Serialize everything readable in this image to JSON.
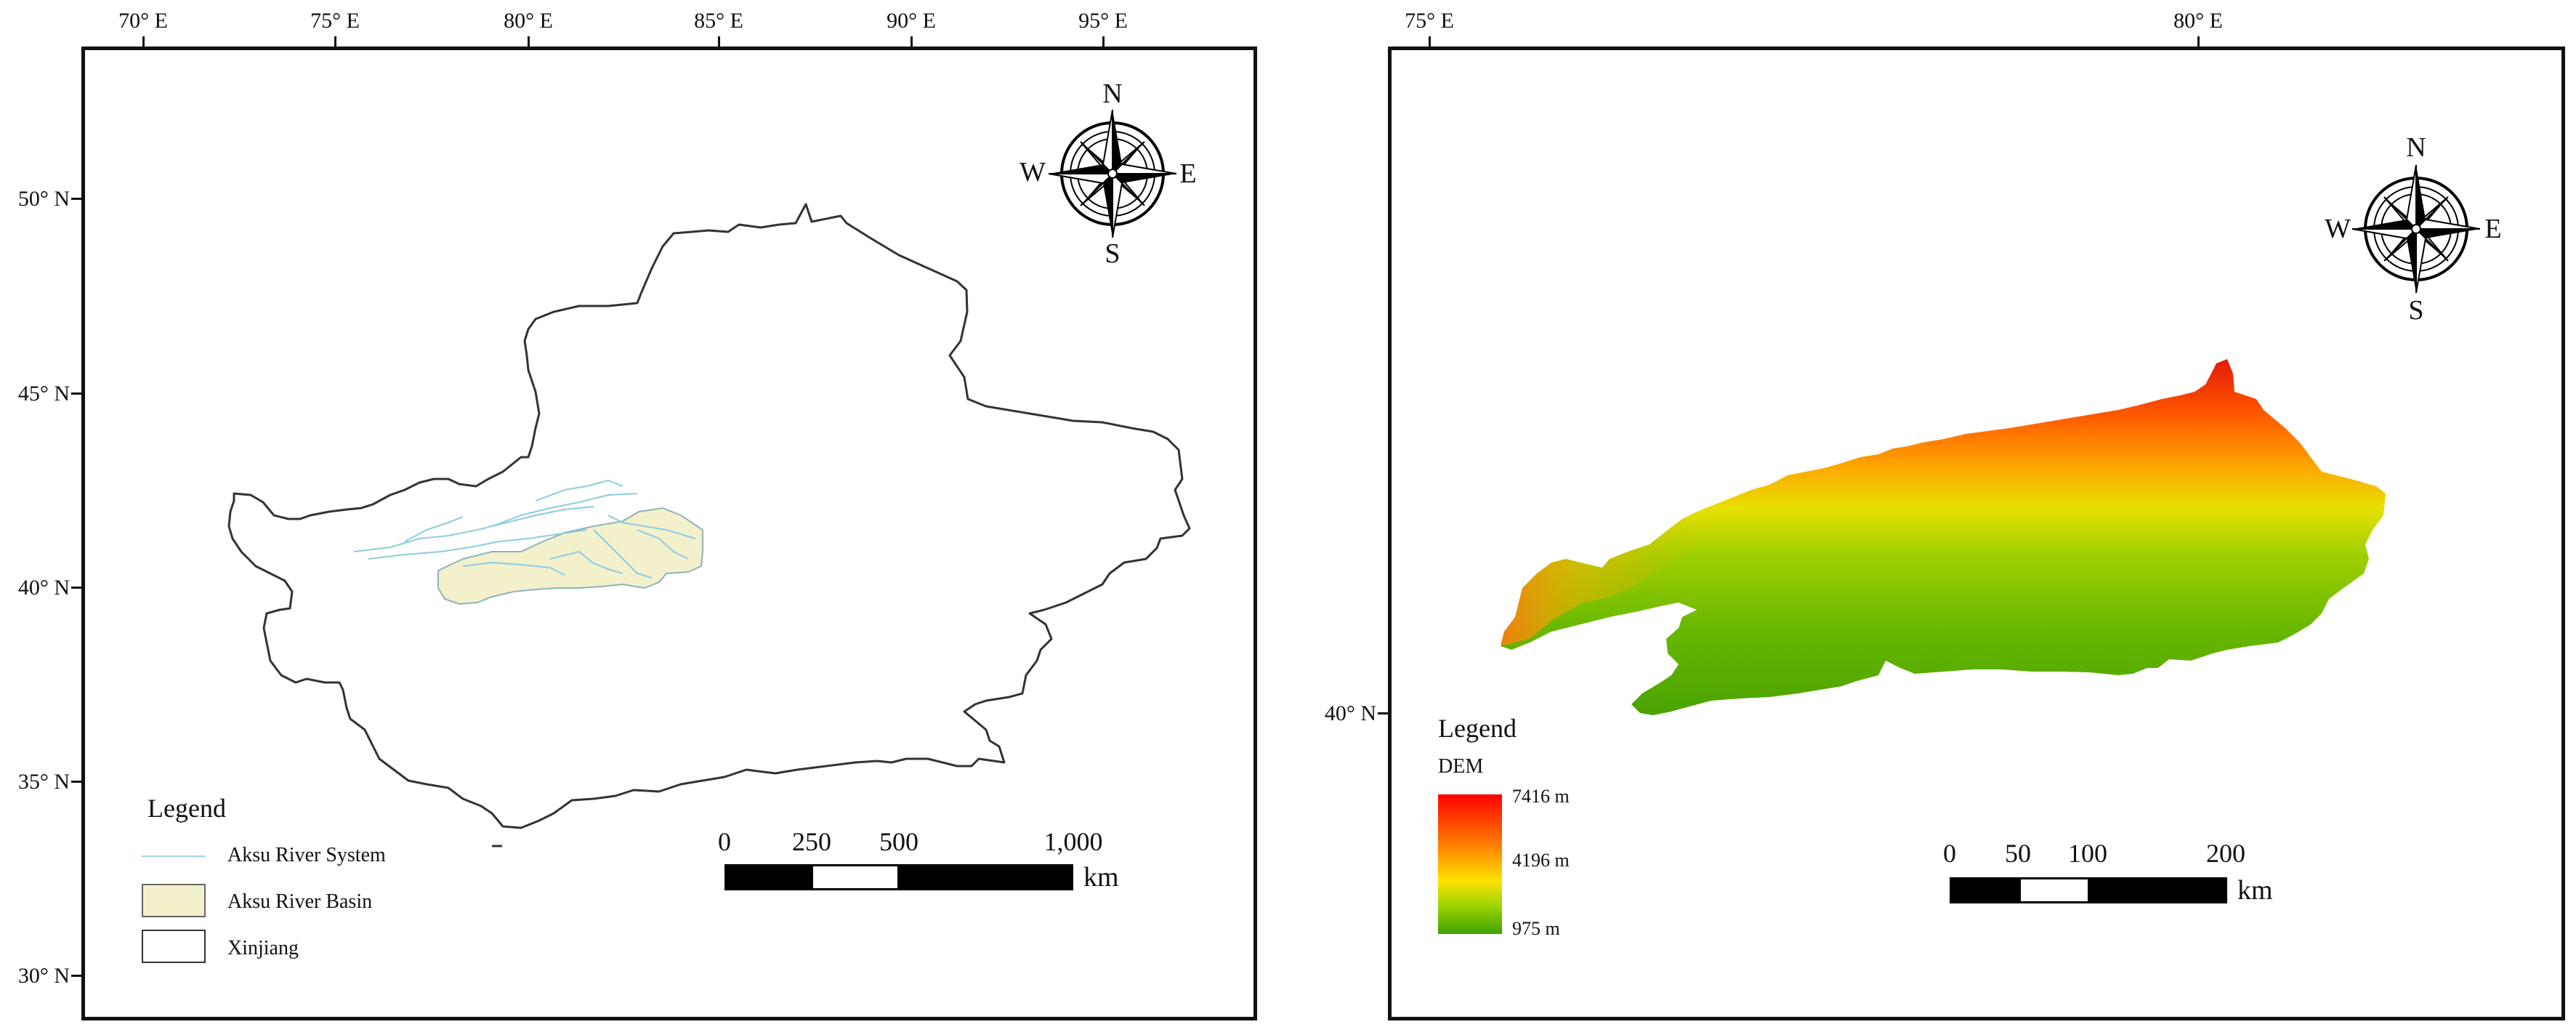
{
  "left_map": {
    "lon_labels": [
      "70° E",
      "75° E",
      "80° E",
      "85° E",
      "90° E",
      "95° E"
    ],
    "lat_labels": [
      "50° N",
      "45° N",
      "40° N",
      "35° N",
      "30° N"
    ],
    "compass": {
      "n": "N",
      "s": "S",
      "e": "E",
      "w": "W"
    },
    "legend": {
      "title": "Legend",
      "items": [
        {
          "label": "Aksu River System",
          "symbol": "line",
          "color": "#9fd3e6"
        },
        {
          "label": "Aksu River Basin",
          "symbol": "fill",
          "color": "#f3f0cc"
        },
        {
          "label": "Xinjiang",
          "symbol": "fill",
          "color": "#ffffff"
        }
      ]
    },
    "scale_bar": {
      "labels": [
        "0",
        "250",
        "500",
        "1,000"
      ],
      "unit": "km"
    }
  },
  "right_map": {
    "lon_labels": [
      "75° E",
      "80° E"
    ],
    "lat_labels": [
      "40° N"
    ],
    "compass": {
      "n": "N",
      "s": "S",
      "e": "E",
      "w": "W"
    },
    "legend": {
      "title": "Legend",
      "subtitle": "DEM",
      "max_label": "7416 m",
      "mid_label": "4196 m",
      "min_label": "975 m",
      "colors": [
        "#ff0000",
        "#ff7a00",
        "#ffe200",
        "#9bd400",
        "#3ea100"
      ]
    },
    "scale_bar": {
      "labels": [
        "0",
        "50",
        "100",
        "200"
      ],
      "unit": "km"
    }
  }
}
